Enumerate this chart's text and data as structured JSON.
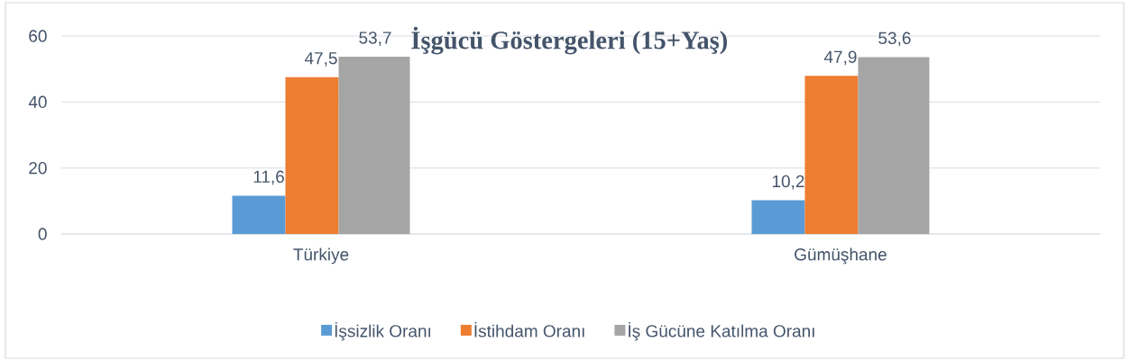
{
  "chart_data": {
    "type": "bar",
    "title": "İşgücü Göstergeleri (15+Yaş)",
    "categories": [
      "Türkiye",
      "Gümüşhane"
    ],
    "series": [
      {
        "name": "İşsizlik Oranı",
        "color": "#5b9bd5",
        "values": [
          11.6,
          10.2
        ],
        "value_labels": [
          "11,6",
          "10,2"
        ]
      },
      {
        "name": "İstihdam Oranı",
        "color": "#ed7d31",
        "values": [
          47.5,
          47.9
        ],
        "value_labels": [
          "47,5",
          "47,9"
        ]
      },
      {
        "name": "İş Gücüne Katılma Oranı",
        "color": "#a5a5a5",
        "values": [
          53.7,
          53.6
        ],
        "value_labels": [
          "53,7",
          "53,6"
        ]
      }
    ],
    "ylim": [
      0,
      60
    ],
    "yticks": [
      0,
      20,
      40,
      60
    ],
    "grid": "y",
    "legend": "bottom"
  }
}
